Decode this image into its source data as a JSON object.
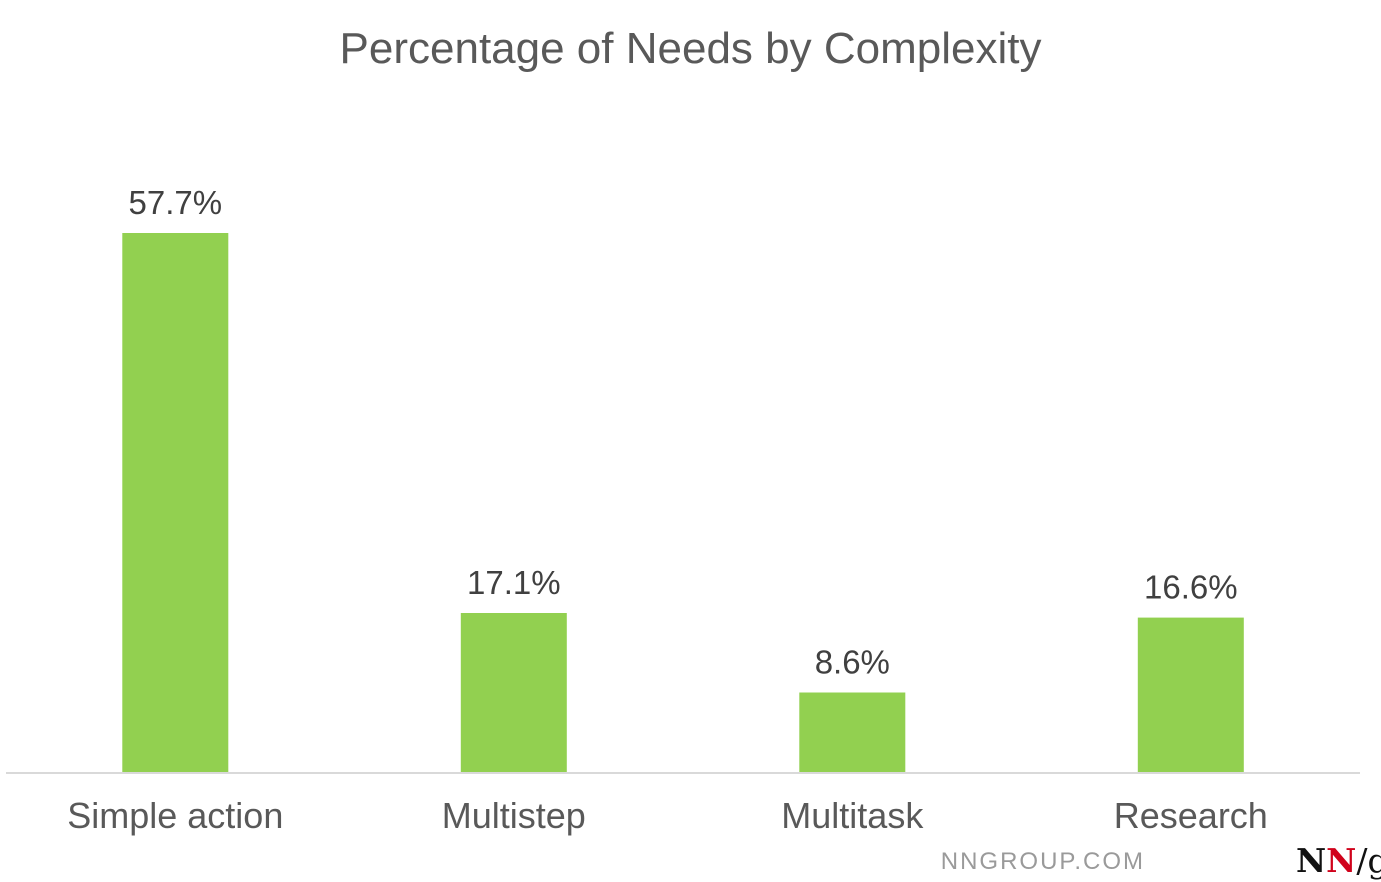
{
  "chart_data": {
    "type": "bar",
    "title": "Percentage of Needs by Complexity",
    "xlabel": "",
    "ylabel": "",
    "categories": [
      "Simple action",
      "Multistep",
      "Multitask",
      "Research"
    ],
    "values": [
      57.7,
      17.1,
      8.6,
      16.6
    ],
    "data_labels": [
      "57.7%",
      "17.1%",
      "8.6%",
      "16.6%"
    ],
    "ylim": [
      0,
      60
    ],
    "grid": false,
    "legend": "none",
    "bar_color": "#92d050"
  },
  "footer": {
    "site": "NNGROUP.COM",
    "logo_text": "NN/g"
  }
}
